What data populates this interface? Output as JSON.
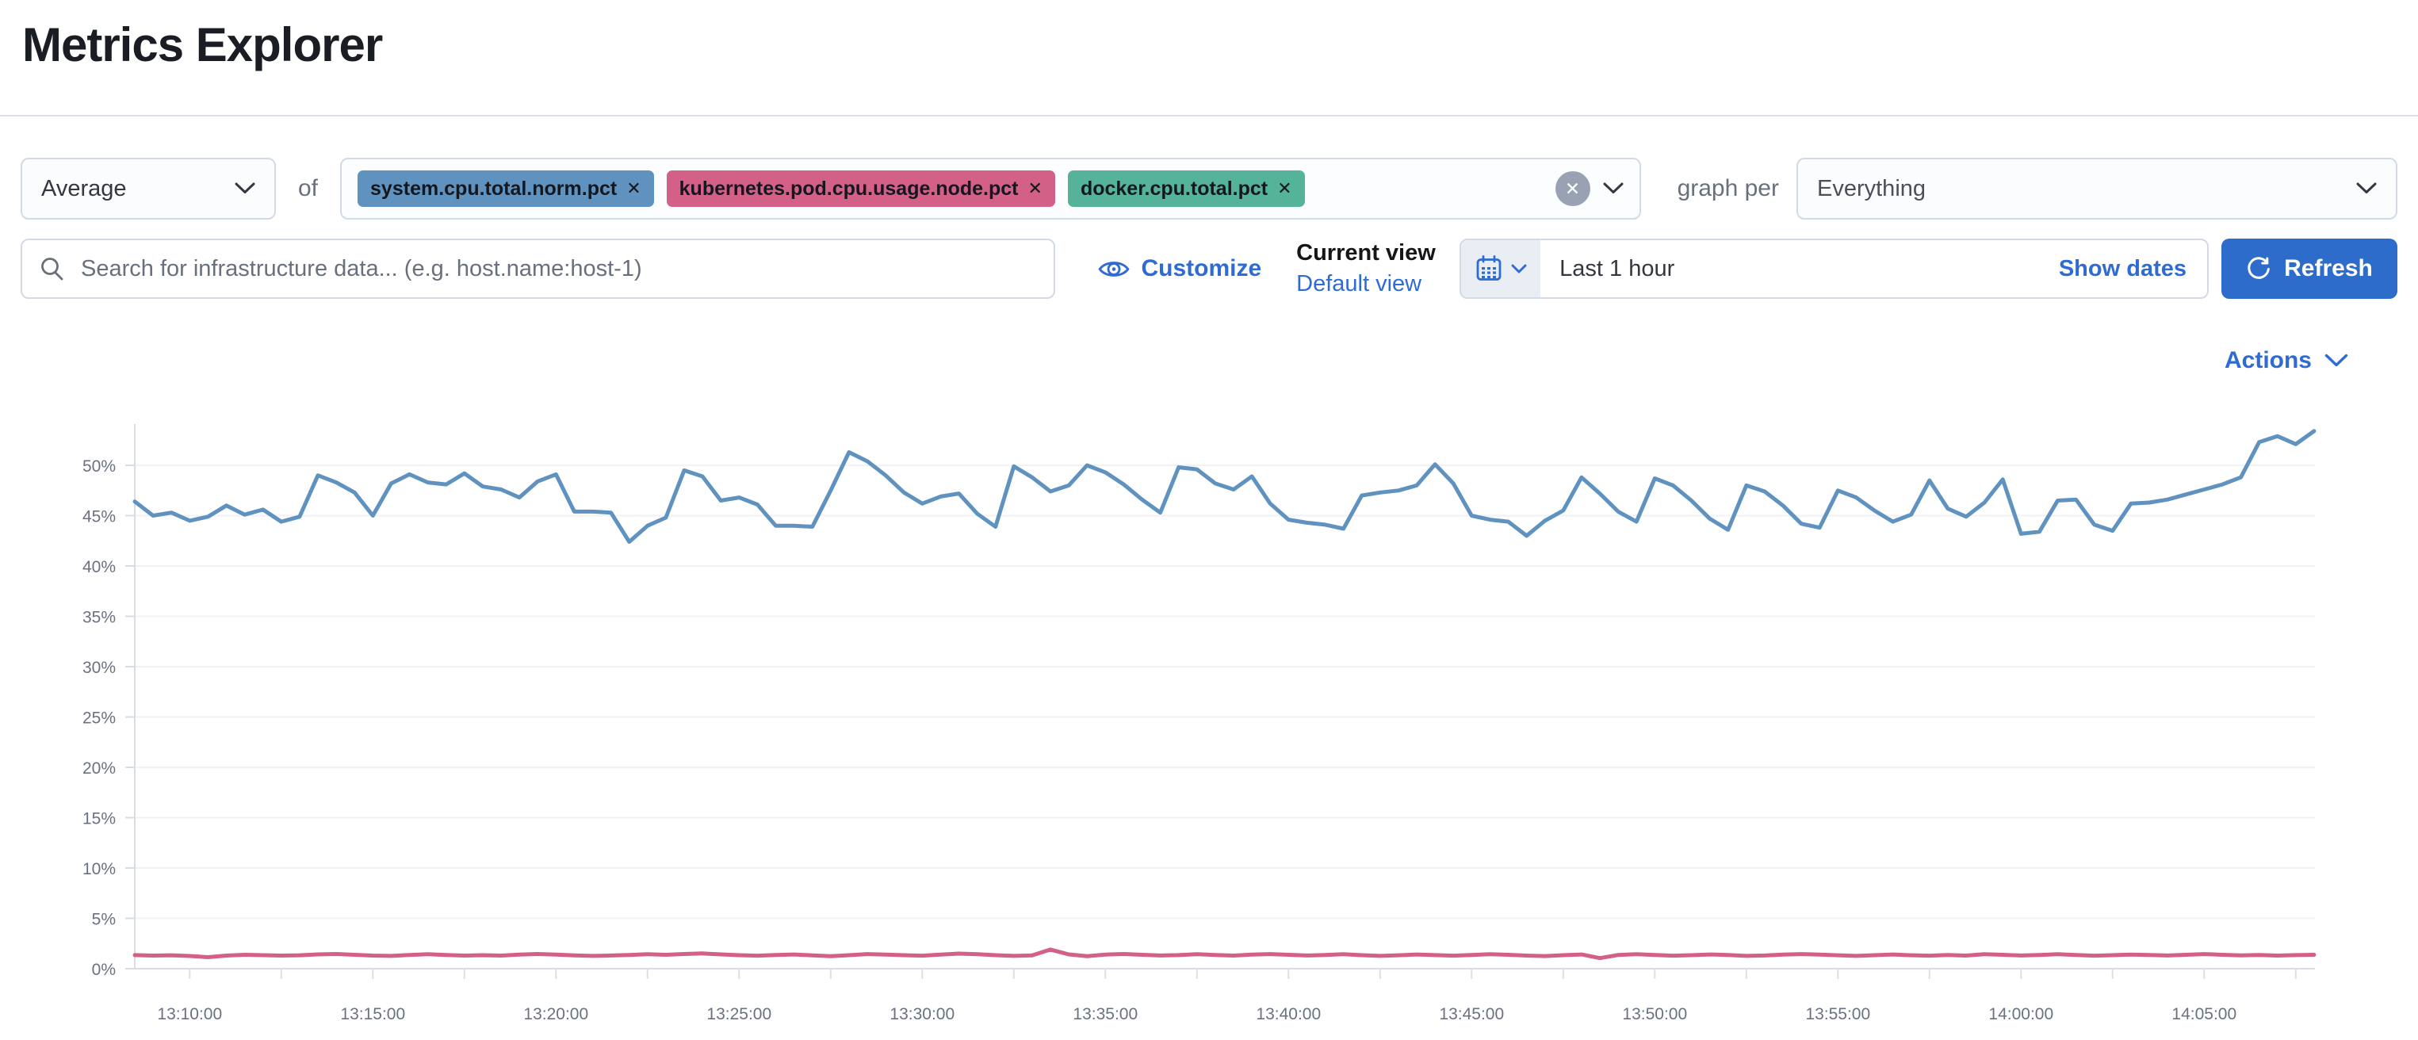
{
  "page": {
    "title": "Metrics Explorer"
  },
  "toolbar": {
    "aggregation": {
      "value": "Average"
    },
    "of_label": "of",
    "metrics": [
      {
        "label": "system.cpu.total.norm.pct",
        "color": "#6092C0"
      },
      {
        "label": "kubernetes.pod.cpu.usage.node.pct",
        "color": "#D36086"
      },
      {
        "label": "docker.cpu.total.pct",
        "color": "#54B399"
      }
    ],
    "remove_icon": "✕",
    "graph_per_label": "graph per",
    "graph_per": {
      "value": "Everything"
    }
  },
  "controls": {
    "search_placeholder": "Search for infrastructure data... (e.g. host.name:host-1)",
    "customize_label": "Customize",
    "current_view_label": "Current view",
    "default_view_label": "Default view",
    "time_range_value": "Last 1 hour",
    "show_dates_label": "Show dates",
    "refresh_label": "Refresh"
  },
  "actions_label": "Actions",
  "chart_data": {
    "type": "line",
    "title": "",
    "xlabel": "",
    "ylabel": "",
    "grid": "horizontal",
    "legend": "off",
    "ylim": [
      0,
      53.7
    ],
    "y_ticks": [
      "0%",
      "5%",
      "10%",
      "15%",
      "20%",
      "25%",
      "30%",
      "35%",
      "40%",
      "45%",
      "50%"
    ],
    "x_tick_labels": [
      "13:10:00",
      "13:15:00",
      "13:20:00",
      "13:25:00",
      "13:30:00",
      "13:35:00",
      "13:40:00",
      "13:45:00",
      "13:50:00",
      "13:55:00",
      "14:00:00",
      "14:05:00"
    ],
    "x_start": "13:08:30",
    "x_interval_seconds": 30,
    "unit": "percent",
    "series": [
      {
        "name": "system.cpu.total.norm.pct",
        "color": "#6092C0",
        "values": [
          46.4,
          45.0,
          45.3,
          44.5,
          44.9,
          46.0,
          45.1,
          45.6,
          44.4,
          44.9,
          49.0,
          48.3,
          47.3,
          45.0,
          48.2,
          49.1,
          48.3,
          48.1,
          49.2,
          47.9,
          47.6,
          46.8,
          48.4,
          49.1,
          45.4,
          45.4,
          45.3,
          42.4,
          44.0,
          44.8,
          49.5,
          48.9,
          46.5,
          46.8,
          46.1,
          44.0,
          44.0,
          43.9,
          47.5,
          51.3,
          50.4,
          49.0,
          47.3,
          46.2,
          46.9,
          47.2,
          45.2,
          43.9,
          49.9,
          48.8,
          47.4,
          48.0,
          50.0,
          49.3,
          48.1,
          46.6,
          45.3,
          49.8,
          49.6,
          48.2,
          47.6,
          48.9,
          46.2,
          44.6,
          44.3,
          44.1,
          43.7,
          47.0,
          47.3,
          47.5,
          48.0,
          50.1,
          48.2,
          45.0,
          44.6,
          44.4,
          43.0,
          44.5,
          45.5,
          48.8,
          47.2,
          45.4,
          44.4,
          48.7,
          48.0,
          46.5,
          44.7,
          43.6,
          48.0,
          47.4,
          46.0,
          44.2,
          43.8,
          47.5,
          46.8,
          45.5,
          44.4,
          45.1,
          48.5,
          45.7,
          44.9,
          46.3,
          48.6,
          43.2,
          43.4,
          46.5,
          46.6,
          44.1,
          43.5,
          46.2,
          46.3,
          46.6,
          47.1,
          47.6,
          48.1,
          48.8,
          52.3,
          52.9,
          52.1,
          53.4
        ]
      },
      {
        "name": "kubernetes.pod.cpu.usage.node.pct",
        "color": "#D36086",
        "values": [
          1.35,
          1.3,
          1.33,
          1.26,
          1.14,
          1.3,
          1.38,
          1.34,
          1.3,
          1.33,
          1.42,
          1.46,
          1.38,
          1.3,
          1.27,
          1.36,
          1.43,
          1.36,
          1.3,
          1.34,
          1.3,
          1.39,
          1.46,
          1.4,
          1.32,
          1.27,
          1.31,
          1.36,
          1.43,
          1.38,
          1.46,
          1.51,
          1.42,
          1.34,
          1.29,
          1.36,
          1.41,
          1.32,
          1.24,
          1.34,
          1.45,
          1.4,
          1.34,
          1.29,
          1.4,
          1.5,
          1.44,
          1.34,
          1.27,
          1.32,
          1.9,
          1.42,
          1.24,
          1.4,
          1.46,
          1.38,
          1.31,
          1.35,
          1.43,
          1.36,
          1.3,
          1.39,
          1.45,
          1.38,
          1.31,
          1.36,
          1.43,
          1.34,
          1.27,
          1.33,
          1.41,
          1.35,
          1.29,
          1.36,
          1.43,
          1.38,
          1.3,
          1.25,
          1.34,
          1.41,
          1.05,
          1.36,
          1.43,
          1.36,
          1.29,
          1.34,
          1.41,
          1.36,
          1.27,
          1.31,
          1.39,
          1.45,
          1.4,
          1.33,
          1.27,
          1.34,
          1.41,
          1.33,
          1.29,
          1.36,
          1.3,
          1.43,
          1.38,
          1.31,
          1.36,
          1.43,
          1.36,
          1.29,
          1.34,
          1.4,
          1.36,
          1.31,
          1.38,
          1.45,
          1.38,
          1.32,
          1.36,
          1.3,
          1.35,
          1.38
        ]
      }
    ]
  }
}
